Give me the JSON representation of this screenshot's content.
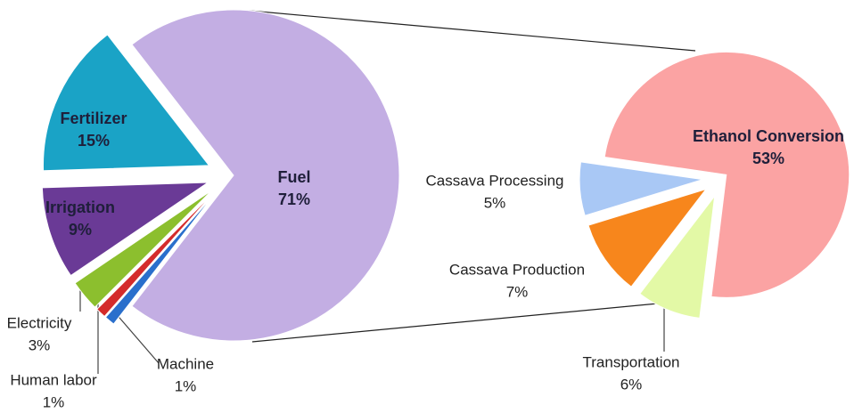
{
  "chart_data": [
    {
      "type": "pie",
      "categories": [
        "Fuel",
        "Machine",
        "Human labor",
        "Electricity",
        "Irrigation",
        "Fertilizer"
      ],
      "values": [
        71,
        1,
        1,
        3,
        9,
        15
      ],
      "value_labels": [
        "71%",
        "1%",
        "1%",
        "3%",
        "9%",
        "15%"
      ],
      "colors": [
        "#c3aee3",
        "#2a6fcc",
        "#d42b2b",
        "#8cbf2e",
        "#6a3a96",
        "#1aa3c6"
      ]
    },
    {
      "type": "pie",
      "categories": [
        "Transportation",
        "Cassava Production",
        "Cassava Processing",
        "Ethanol Conversion"
      ],
      "values": [
        6,
        7,
        5,
        53
      ],
      "value_labels": [
        "6%",
        "7%",
        "5%",
        "53%"
      ],
      "colors": [
        "#e3f9a6",
        "#f7861c",
        "#a9c8f5",
        "#fba3a3"
      ]
    }
  ]
}
